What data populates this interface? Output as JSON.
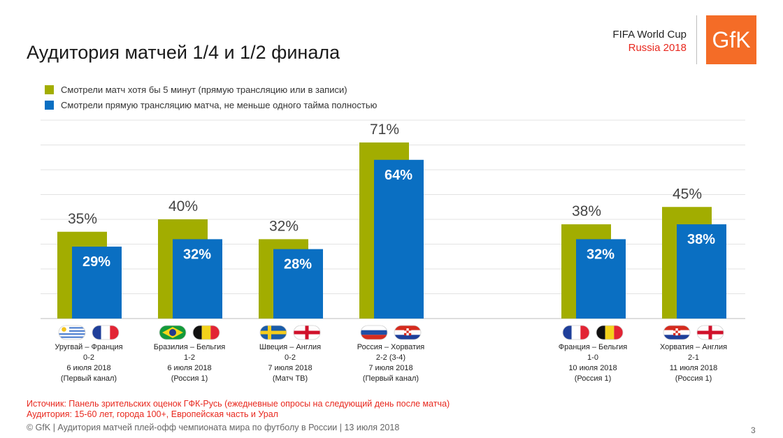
{
  "header": {
    "title": "Аудитория матчей 1/4 и 1/2 финала",
    "brand_line1": "FIFA World Cup",
    "brand_line2": "Russia 2018",
    "logo_text": "GfK"
  },
  "colors": {
    "green": "#a2ad00",
    "blue": "#0a6fc2",
    "logo": "#f46c27",
    "accent_red": "#e8281e"
  },
  "chart_data": {
    "type": "bar",
    "series": [
      {
        "name": "Смотрели матч хотя бы 5 минут (прямую трансляцию или в записи)",
        "color": "#a2ad00",
        "values": [
          35,
          40,
          32,
          71,
          38,
          45
        ],
        "labels": [
          "35%",
          "40%",
          "32%",
          "71%",
          "38%",
          "45%"
        ]
      },
      {
        "name": "Смотрели прямую трансляцию матча, не меньше одного тайма полностью",
        "color": "#0a6fc2",
        "values": [
          29,
          32,
          28,
          64,
          32,
          38
        ],
        "labels": [
          "29%",
          "32%",
          "28%",
          "64%",
          "32%",
          "38%"
        ]
      }
    ],
    "ylim": [
      0,
      80
    ],
    "grid": true,
    "matches": [
      {
        "teams": "Уругвай – Франция",
        "score": "0-2",
        "date": "6 июля 2018",
        "channel": "(Первый канал)",
        "flags": [
          "uruguay-flag-icon",
          "france-flag-icon"
        ]
      },
      {
        "teams": "Бразилия – Бельгия",
        "score": "1-2",
        "date": "6 июля 2018",
        "channel": "(Россия 1)",
        "flags": [
          "brazil-flag-icon",
          "belgium-flag-icon"
        ]
      },
      {
        "teams": "Швеция – Англия",
        "score": "0-2",
        "date": "7 июля 2018",
        "channel": "(Матч ТВ)",
        "flags": [
          "sweden-flag-icon",
          "england-flag-icon"
        ]
      },
      {
        "teams": "Россия – Хорватия",
        "score": "2-2 (3-4)",
        "date": "7 июля 2018",
        "channel": "(Первый канал)",
        "flags": [
          "russia-flag-icon",
          "croatia-flag-icon"
        ]
      },
      {
        "teams": "Франция – Бельгия",
        "score": "1-0",
        "date": "10 июля 2018",
        "channel": "(Россия 1)",
        "flags": [
          "france-flag-icon",
          "belgium-flag-icon"
        ]
      },
      {
        "teams": "Хорватия – Англия",
        "score": "2-1",
        "date": "11 июля 2018",
        "channel": "(Россия 1)",
        "flags": [
          "croatia-flag-icon",
          "england-flag-icon"
        ]
      }
    ]
  },
  "source": {
    "line1": "Источник: Панель зрительских оценок ГФК-Русь (ежедневные опросы на следующий день после матча)",
    "line2": "Аудитория: 15-60 лет, города 100+, Европейская часть и Урал"
  },
  "footer": {
    "text": "© GfK | Аудитория матчей плей-офф чемпионата мира по футболу в России | 13 июля 2018",
    "page_number": "3"
  }
}
